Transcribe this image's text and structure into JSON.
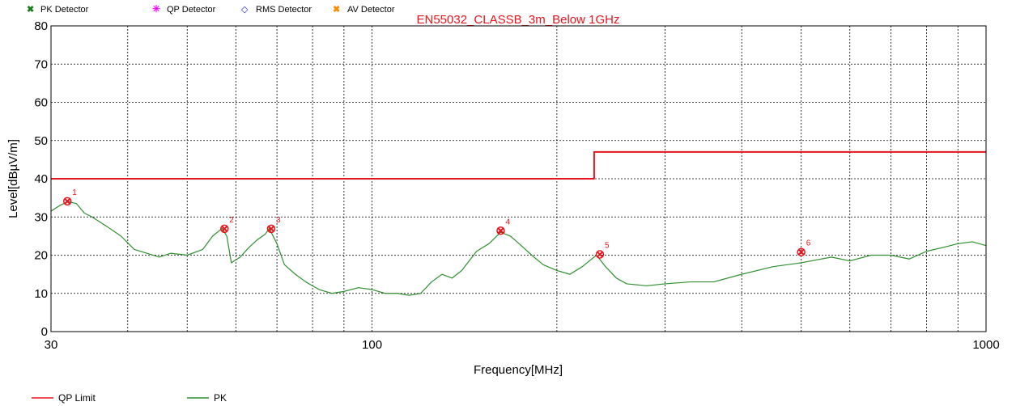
{
  "chart_data": {
    "type": "line",
    "title": "EN55032_CLASSB_3m_Below 1GHz",
    "xlabel": "Frequency[MHz]",
    "ylabel": "Level[dBµV/m]",
    "x_scale": "log",
    "xlim": [
      30,
      1000
    ],
    "ylim": [
      0,
      80
    ],
    "x_ticks": [
      30,
      100,
      1000
    ],
    "y_ticks": [
      0,
      10,
      20,
      30,
      40,
      50,
      60,
      70,
      80
    ],
    "grid": true,
    "colors": {
      "limit": "#e8131c",
      "pk": "#2f8f2f",
      "pk_detector": "#1d7a1d",
      "qp_detector": "#ff00ff",
      "rms_detector": "#1a1ad0",
      "av_detector": "#ff8a00",
      "marker": "#e8131c"
    },
    "detector_legend": [
      {
        "label": "PK Detector",
        "color": "#1d7a1d",
        "symbol": "x-icon"
      },
      {
        "label": "QP Detector",
        "color": "#ff00ff",
        "symbol": "asterisk-icon"
      },
      {
        "label": "RMS Detector",
        "color": "#1a1ad0",
        "symbol": "diamond-icon"
      },
      {
        "label": "AV Detector",
        "color": "#ff8a00",
        "symbol": "x-icon"
      }
    ],
    "series_legend": [
      {
        "label": "QP Limit",
        "color": "#e8131c"
      },
      {
        "label": "PK",
        "color": "#2f8f2f"
      }
    ],
    "series": [
      {
        "name": "QP Limit",
        "x": [
          30,
          230,
          230,
          1000
        ],
        "y": [
          40,
          40,
          47,
          47
        ]
      },
      {
        "name": "PK",
        "x": [
          30,
          31,
          32,
          33,
          34,
          35,
          37,
          39,
          41,
          43,
          45,
          47,
          50,
          53,
          55,
          57,
          58,
          59,
          61,
          63,
          65,
          67,
          68,
          70,
          72,
          75,
          78,
          82,
          86,
          90,
          95,
          100,
          105,
          110,
          115,
          120,
          125,
          130,
          135,
          140,
          148,
          155,
          162,
          168,
          175,
          182,
          190,
          200,
          210,
          220,
          232,
          240,
          250,
          260,
          280,
          300,
          330,
          360,
          400,
          450,
          500,
          560,
          600,
          650,
          700,
          750,
          800,
          850,
          900,
          950,
          1000
        ],
        "y": [
          31.5,
          33,
          34,
          33.5,
          31,
          30,
          27.5,
          25,
          21.5,
          20.5,
          19.5,
          20.5,
          20,
          21.5,
          25,
          27,
          25,
          18,
          19.5,
          22,
          24,
          25.5,
          27,
          23,
          17.5,
          15,
          13,
          11,
          10,
          10.5,
          11.5,
          11,
          10,
          10,
          9.5,
          10,
          13,
          15,
          14,
          16,
          21,
          23,
          26,
          25,
          22.5,
          20,
          17.5,
          16,
          15,
          17,
          20,
          17,
          14,
          12.5,
          12,
          12.5,
          13,
          13,
          15,
          17,
          18,
          19.5,
          18.5,
          20,
          20,
          19,
          21,
          22,
          23,
          23.5,
          22.5
        ]
      }
    ],
    "markers": [
      {
        "label": "1",
        "x": 31.9,
        "y": 34.1
      },
      {
        "label": "2",
        "x": 57.5,
        "y": 26.9
      },
      {
        "label": "3",
        "x": 68.5,
        "y": 26.9
      },
      {
        "label": "4",
        "x": 162,
        "y": 26.4
      },
      {
        "label": "5",
        "x": 235,
        "y": 20.2
      },
      {
        "label": "6",
        "x": 500,
        "y": 20.8
      }
    ]
  }
}
